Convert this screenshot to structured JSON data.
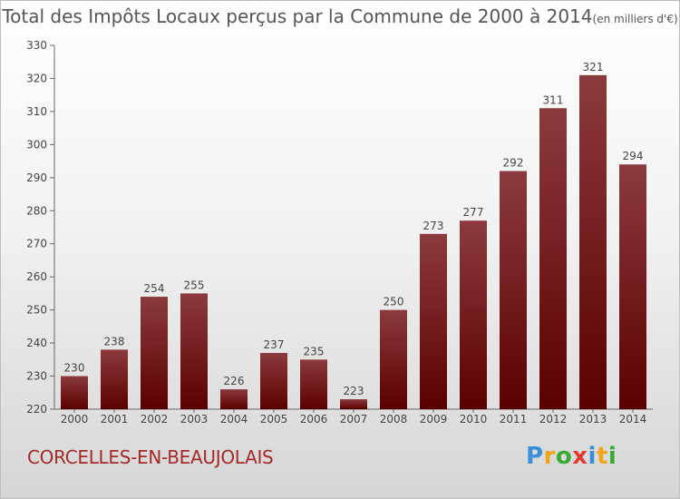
{
  "header": {
    "title": "Total des Impôts Locaux perçus par la Commune de 2000 à 2014",
    "unit": "(en milliers d'€)"
  },
  "footer": {
    "commune": "CORCELLES-EN-BEAUJOLAIS",
    "logo_letters": [
      "P",
      "r",
      "o",
      "x",
      "i",
      "t",
      "i"
    ]
  },
  "chart_data": {
    "type": "bar",
    "title": "Total des Impôts Locaux perçus par la Commune de 2000 à 2014",
    "unit": "(en milliers d'€)",
    "categories": [
      "2000",
      "2001",
      "2002",
      "2003",
      "2004",
      "2005",
      "2006",
      "2007",
      "2008",
      "2009",
      "2010",
      "2011",
      "2012",
      "2013",
      "2014"
    ],
    "values": [
      230,
      238,
      254,
      255,
      226,
      237,
      235,
      223,
      250,
      273,
      277,
      292,
      311,
      321,
      294
    ],
    "ylim": [
      220,
      330
    ],
    "yticks": [
      220,
      230,
      240,
      250,
      260,
      270,
      280,
      290,
      300,
      310,
      320,
      330
    ],
    "grid": false,
    "colors": {
      "bar_top": "#8c3a3e",
      "bar_bottom": "#5a0000",
      "axis": "#666666",
      "text": "#444444"
    }
  }
}
